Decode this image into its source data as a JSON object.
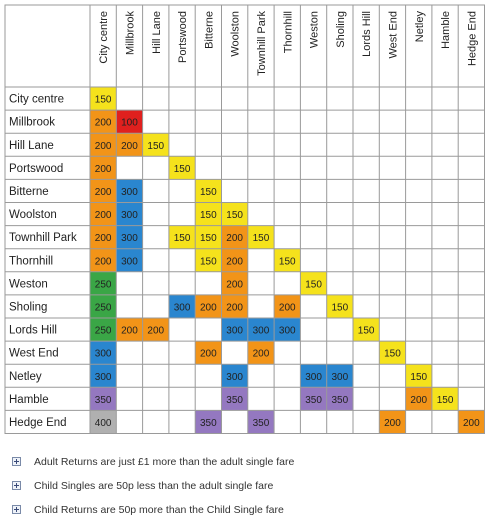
{
  "colors": {
    "150": "#f5e21c",
    "200": "#f29418",
    "100": "#e0201e",
    "250": "#3aa646",
    "300": "#2a86cf",
    "350": "#9478c0",
    "400": "#b0b0b0",
    "border": "#9a9a9a"
  },
  "columns": [
    "City centre",
    "Millbrook",
    "Hill Lane",
    "Portswood",
    "Bitterne",
    "Woolston",
    "Townhill Park",
    "Thornhill",
    "Weston",
    "Sholing",
    "Lords Hill",
    "West End",
    "Netley",
    "Hamble",
    "Hedge End"
  ],
  "rows": [
    {
      "label": "City centre",
      "cells": [
        "150",
        "",
        "",
        "",
        "",
        "",
        "",
        "",
        "",
        "",
        "",
        "",
        "",
        "",
        ""
      ]
    },
    {
      "label": "Millbrook",
      "cells": [
        "200",
        "100",
        "",
        "",
        "",
        "",
        "",
        "",
        "",
        "",
        "",
        "",
        "",
        "",
        ""
      ]
    },
    {
      "label": "Hill Lane",
      "cells": [
        "200",
        "200",
        "150",
        "",
        "",
        "",
        "",
        "",
        "",
        "",
        "",
        "",
        "",
        "",
        ""
      ]
    },
    {
      "label": "Portswood",
      "cells": [
        "200",
        "",
        "",
        "150",
        "",
        "",
        "",
        "",
        "",
        "",
        "",
        "",
        "",
        "",
        ""
      ]
    },
    {
      "label": "Bitterne",
      "cells": [
        "200",
        "300",
        "",
        "",
        "150",
        "",
        "",
        "",
        "",
        "",
        "",
        "",
        "",
        "",
        ""
      ]
    },
    {
      "label": "Woolston",
      "cells": [
        "200",
        "300",
        "",
        "",
        "150",
        "150",
        "",
        "",
        "",
        "",
        "",
        "",
        "",
        "",
        ""
      ]
    },
    {
      "label": "Townhill Park",
      "cells": [
        "200",
        "300",
        "",
        "150",
        "150",
        "200",
        "150",
        "",
        "",
        "",
        "",
        "",
        "",
        "",
        ""
      ]
    },
    {
      "label": "Thornhill",
      "cells": [
        "200",
        "300",
        "",
        "",
        "150",
        "200",
        "",
        "150",
        "",
        "",
        "",
        "",
        "",
        "",
        ""
      ]
    },
    {
      "label": "Weston",
      "cells": [
        "250",
        "",
        "",
        "",
        "",
        "200",
        "",
        "",
        "150",
        "",
        "",
        "",
        "",
        "",
        ""
      ]
    },
    {
      "label": "Sholing",
      "cells": [
        "250",
        "",
        "",
        "300",
        "200",
        "200",
        "",
        "200",
        "",
        "150",
        "",
        "",
        "",
        "",
        ""
      ]
    },
    {
      "label": "Lords Hill",
      "cells": [
        "250",
        "200",
        "200",
        "",
        "",
        "300",
        "300",
        "300",
        "",
        "",
        "150",
        "",
        "",
        "",
        ""
      ]
    },
    {
      "label": "West End",
      "cells": [
        "300",
        "",
        "",
        "",
        "200",
        "",
        "200",
        "",
        "",
        "",
        "",
        "150",
        "",
        "",
        ""
      ]
    },
    {
      "label": "Netley",
      "cells": [
        "300",
        "",
        "",
        "",
        "",
        "300",
        "",
        "",
        "300",
        "300",
        "",
        "",
        "150",
        "",
        ""
      ]
    },
    {
      "label": "Hamble",
      "cells": [
        "350",
        "",
        "",
        "",
        "",
        "350",
        "",
        "",
        "350",
        "350",
        "",
        "",
        "200",
        "150",
        ""
      ]
    },
    {
      "label": "Hedge End",
      "cells": [
        "400",
        "",
        "",
        "",
        "350",
        "",
        "350",
        "",
        "",
        "",
        "",
        "200",
        "",
        "",
        "200"
      ]
    }
  ],
  "notes": [
    "Adult Returns are just £1 more than the adult single fare",
    "Child Singles are 50p less than the adult single fare",
    "Child Returns are 50p more than the Child Single fare"
  ]
}
